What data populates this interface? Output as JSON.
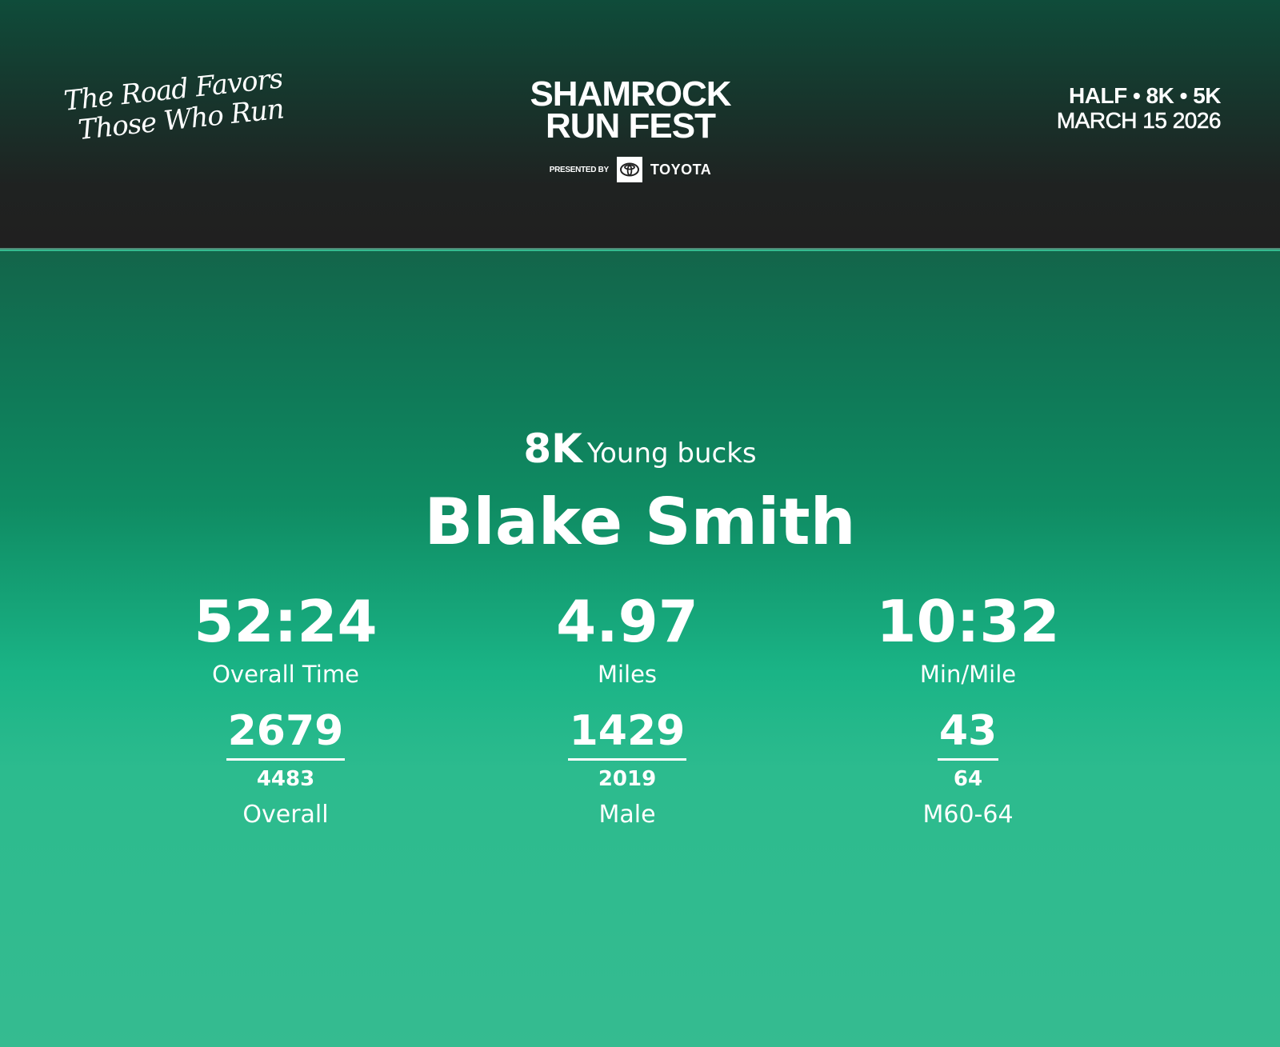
{
  "header": {
    "tagline": [
      "The Road Favors",
      "Those Who Run"
    ],
    "logo": {
      "line1": "SHAMROCK",
      "line2": "RUN FEST",
      "presented_by": "PRESENTED BY",
      "sponsor": "TOYOTA",
      "sponsor_icon": "toyota-logo-icon"
    },
    "event": {
      "distances": "HALF • 8K • 5K",
      "date": "MARCH 15 2026"
    }
  },
  "result": {
    "distance": "8K",
    "category": "Young bucks",
    "name": "Blake Smith",
    "stats": [
      {
        "value": "52:24",
        "label": "Overall Time",
        "rank": "2679",
        "total": "4483",
        "rank_label": "Overall"
      },
      {
        "value": "4.97",
        "label": "Miles",
        "rank": "1429",
        "total": "2019",
        "rank_label": "Male"
      },
      {
        "value": "10:32",
        "label": "Min/Mile",
        "rank": "43",
        "total": "64",
        "rank_label": "M60-64"
      }
    ]
  },
  "colors": {
    "header_dark": "#202020",
    "header_green": "#0f4c3a",
    "main_top": "#13654a",
    "main_bottom": "#35bb90"
  }
}
